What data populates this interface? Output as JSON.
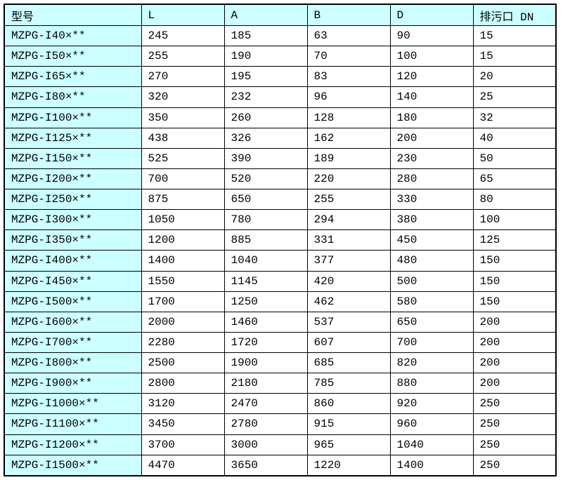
{
  "colors": {
    "header_bg": "#ccffff",
    "model_column_bg": "#ccffff",
    "cell_bg": "#ffffff",
    "border": "#000000",
    "text": "#000000"
  },
  "table": {
    "columns": [
      "型号",
      "L",
      "A",
      "B",
      "D",
      "排污口 DN"
    ],
    "rows": [
      [
        "MZPG-I40×**",
        "245",
        "185",
        "63",
        "90",
        "15"
      ],
      [
        "MZPG-I50×**",
        "255",
        "190",
        "70",
        "100",
        "15"
      ],
      [
        "MZPG-I65×**",
        "270",
        "195",
        "83",
        "120",
        "20"
      ],
      [
        "MZPG-I80×**",
        "320",
        "232",
        "96",
        "140",
        "25"
      ],
      [
        "MZPG-I100×**",
        "350",
        "260",
        "128",
        "180",
        "32"
      ],
      [
        "MZPG-I125×**",
        "438",
        "326",
        "162",
        "200",
        "40"
      ],
      [
        "MZPG-I150×**",
        "525",
        "390",
        "189",
        "230",
        "50"
      ],
      [
        "MZPG-I200×**",
        "700",
        "520",
        "220",
        "280",
        "65"
      ],
      [
        "MZPG-I250×**",
        "875",
        "650",
        "255",
        "330",
        "80"
      ],
      [
        "MZPG-I300×**",
        "1050",
        "780",
        "294",
        "380",
        "100"
      ],
      [
        "MZPG-I350×**",
        "1200",
        "885",
        "331",
        "450",
        "125"
      ],
      [
        "MZPG-I400×**",
        "1400",
        "1040",
        "377",
        "480",
        "150"
      ],
      [
        "MZPG-I450×**",
        "1550",
        "1145",
        "420",
        "500",
        "150"
      ],
      [
        "MZPG-I500×**",
        "1700",
        "1250",
        "462",
        "580",
        "150"
      ],
      [
        "MZPG-I600×**",
        "2000",
        "1460",
        "537",
        "650",
        "200"
      ],
      [
        "MZPG-I700×**",
        "2280",
        "1720",
        "607",
        "700",
        "200"
      ],
      [
        "MZPG-I800×**",
        "2500",
        "1900",
        "685",
        "820",
        "200"
      ],
      [
        "MZPG-I900×**",
        "2800",
        "2180",
        "785",
        "880",
        "200"
      ],
      [
        "MZPG-I1000×**",
        "3120",
        "2470",
        "860",
        "920",
        "250"
      ],
      [
        "MZPG-I1100×**",
        "3450",
        "2780",
        "915",
        "960",
        "250"
      ],
      [
        "MZPG-I1200×**",
        "3700",
        "3000",
        "965",
        "1040",
        "250"
      ],
      [
        "MZPG-I1500×**",
        "4470",
        "3650",
        "1220",
        "1400",
        "250"
      ]
    ]
  }
}
